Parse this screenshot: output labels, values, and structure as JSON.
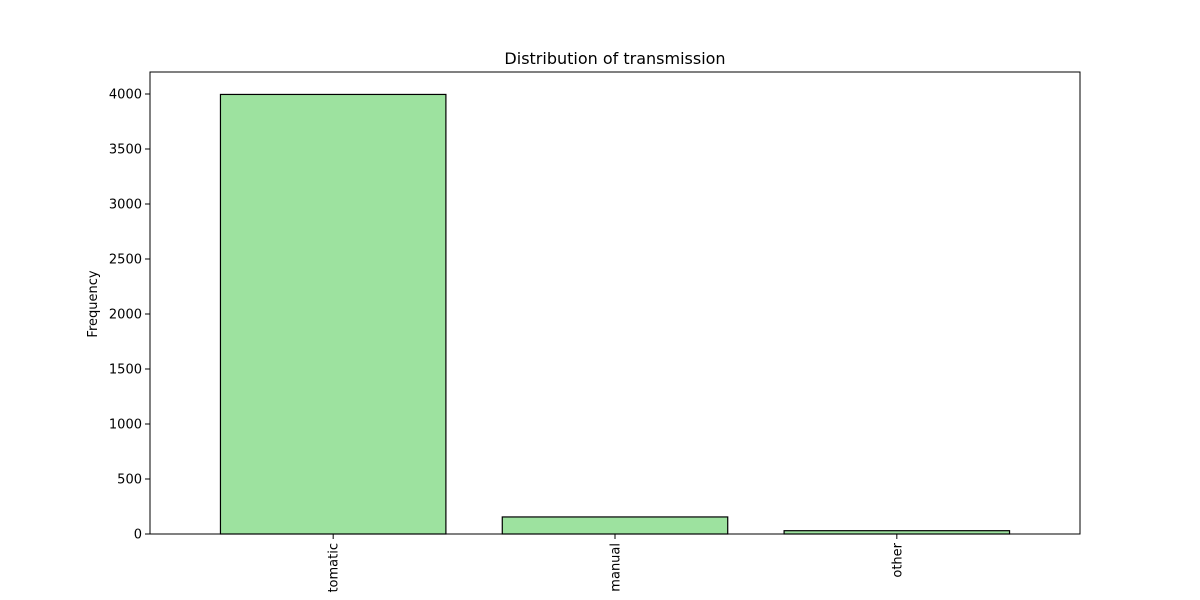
{
  "chart_data": {
    "type": "bar",
    "title": "Distribution of transmission",
    "xlabel": "",
    "ylabel": "Frequency",
    "categories": [
      "tomatic",
      "manual",
      "other"
    ],
    "values": [
      3996,
      155,
      30
    ],
    "ylim": [
      0,
      4200
    ],
    "yticks": [
      0,
      500,
      1000,
      1500,
      2000,
      2500,
      3000,
      3500,
      4000
    ],
    "grid": false,
    "legend": "none",
    "x_tick_rotation": "vertical",
    "bar_color": "#9de29f",
    "bar_edge_color": "#000000"
  }
}
